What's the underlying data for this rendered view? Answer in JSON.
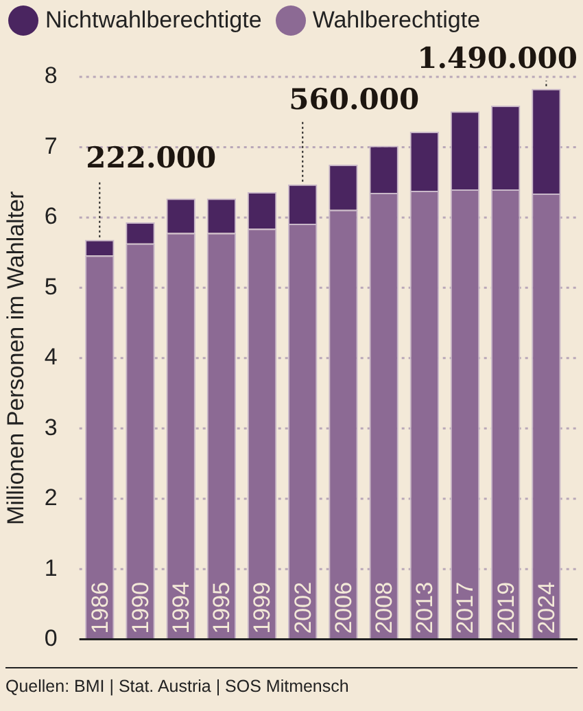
{
  "chart_data": {
    "type": "bar",
    "stacked": true,
    "ylabel": "Millionen Personen im Wahlalter",
    "categories": [
      "1986",
      "1990",
      "1994",
      "1995",
      "1999",
      "2002",
      "2006",
      "2008",
      "2013",
      "2017",
      "2019",
      "2024"
    ],
    "series": [
      {
        "name": "Wahlberechtigte",
        "color": "#8c6a94",
        "values": [
          5.46,
          5.63,
          5.78,
          5.78,
          5.84,
          5.91,
          6.11,
          6.35,
          6.38,
          6.4,
          6.4,
          6.34
        ]
      },
      {
        "name": "Nichtwahlberechtigte",
        "color": "#4a2560",
        "values": [
          0.222,
          0.3,
          0.49,
          0.49,
          0.52,
          0.56,
          0.64,
          0.67,
          0.84,
          1.11,
          1.19,
          1.49
        ]
      }
    ],
    "ylim": [
      0,
      8
    ],
    "yticks": [
      0,
      1,
      2,
      3,
      4,
      5,
      6,
      7,
      8
    ],
    "grid": "y",
    "legend": "top left",
    "annotations": [
      {
        "text": "222.000",
        "x": "1986",
        "y": 5.68
      },
      {
        "text": "560.000",
        "x": "2002",
        "y": 6.47
      },
      {
        "text": "1.490.000",
        "x": "2024",
        "y": 7.83
      },
      "Quellen: BMI | Stat. Austria | SOS Mitmensch"
    ]
  }
}
